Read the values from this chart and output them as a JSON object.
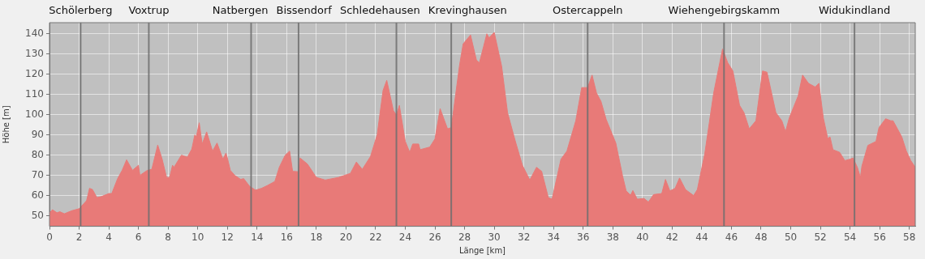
{
  "chart_data": {
    "type": "area",
    "xlabel": "Länge [km]",
    "ylabel": "Höhe [m]",
    "x": [
      0,
      0.2,
      0.5,
      0.7,
      1.0,
      1.5,
      2.0,
      2.5,
      2.7,
      2.9,
      3.2,
      3.5,
      4.0,
      4.2,
      4.6,
      4.9,
      5.2,
      5.6,
      6.0,
      6.1,
      6.6,
      6.9,
      7.3,
      7.6,
      7.9,
      8.1,
      8.3,
      8.4,
      8.9,
      9.3,
      9.6,
      9.8,
      9.9,
      10.1,
      10.3,
      10.6,
      11.0,
      11.3,
      11.7,
      11.9,
      12.0,
      12.2,
      12.5,
      12.9,
      13.1,
      13.5,
      13.9,
      14.3,
      14.7,
      15.2,
      15.5,
      15.9,
      16.2,
      16.4,
      16.8,
      16.9,
      17.4,
      18.0,
      18.6,
      19.5,
      20.3,
      20.7,
      21.1,
      21.65,
      22.1,
      22.5,
      22.75,
      23.2,
      23.4,
      23.6,
      24.0,
      24.3,
      24.5,
      24.9,
      25.0,
      25.65,
      26.0,
      26.35,
      26.85,
      27.1,
      27.65,
      27.9,
      28.4,
      28.8,
      29.0,
      29.5,
      29.65,
      30.0,
      30.5,
      30.9,
      31.4,
      31.9,
      32.4,
      32.85,
      33.2,
      33.65,
      33.9,
      34.5,
      34.9,
      35.5,
      35.9,
      36.3,
      36.6,
      36.9,
      37.2,
      37.55,
      38.2,
      38.65,
      38.9,
      39.2,
      39.35,
      39.65,
      40.1,
      40.4,
      40.75,
      41.3,
      41.55,
      41.85,
      42.2,
      42.5,
      42.9,
      43.45,
      43.7,
      44.2,
      44.8,
      45.4,
      45.75,
      46.1,
      46.55,
      46.85,
      47.2,
      47.65,
      48.1,
      48.4,
      49.0,
      49.4,
      49.65,
      49.9,
      50.5,
      50.8,
      51.2,
      51.65,
      51.9,
      52.2,
      52.5,
      52.65,
      52.85,
      53.3,
      53.65,
      54.0,
      54.2,
      54.5,
      54.7,
      54.8,
      55.2,
      55.75,
      55.95,
      56.4,
      56.75,
      56.9,
      57.2,
      57.5,
      57.8,
      58.1,
      58.4
    ],
    "series": [
      {
        "color": "#e87a78",
        "values": [
          51.4,
          53,
          51.5,
          52,
          51,
          52.5,
          53.5,
          57.5,
          63.6,
          63,
          59,
          59.5,
          61,
          61,
          68.5,
          72.5,
          77.7,
          72.5,
          75,
          70,
          72.5,
          73,
          85,
          78,
          69,
          69,
          75,
          74,
          80,
          79,
          83,
          90,
          89,
          96,
          85.5,
          91.5,
          82,
          86,
          78,
          81,
          78.6,
          72.5,
          70,
          68,
          68.4,
          64.6,
          62.7,
          63.6,
          65,
          67,
          74,
          80,
          82,
          72,
          71.8,
          78.6,
          75.6,
          69,
          67.7,
          69,
          71,
          76.6,
          73,
          79.3,
          90,
          112,
          117,
          102,
          99.8,
          104.6,
          86.8,
          81.4,
          85.5,
          85.5,
          82.7,
          84,
          88,
          103,
          93,
          93.6,
          124,
          135,
          139.4,
          127,
          125.7,
          140,
          138,
          140.7,
          124,
          101,
          87.5,
          75,
          67.7,
          74,
          72,
          59,
          58.2,
          78,
          82,
          97,
          113.4,
          113.4,
          119.6,
          110.7,
          106.6,
          97.7,
          86,
          70,
          62.3,
          60.2,
          62.5,
          58.2,
          58.6,
          56.8,
          60.5,
          61,
          68,
          62.3,
          63.6,
          68.7,
          63,
          60,
          63,
          80.7,
          110.7,
          132.5,
          125.7,
          121.6,
          104.6,
          101,
          93,
          97,
          121.6,
          121,
          101,
          97,
          91.6,
          98.4,
          109.3,
          119.6,
          115.5,
          113.7,
          115.5,
          98.4,
          88.2,
          89,
          82.7,
          81.4,
          77.3,
          78,
          78.6,
          73.9,
          69,
          74.6,
          84.8,
          86.8,
          93.6,
          98,
          97,
          97,
          93,
          88.9,
          82,
          77.3,
          74
        ]
      }
    ],
    "xlim": [
      0,
      58.4
    ],
    "ylim": [
      44.8,
      145.5
    ],
    "xticks": [
      0,
      2,
      4,
      6,
      8,
      10,
      12,
      14,
      16,
      18,
      20,
      22,
      24,
      26,
      28,
      30,
      32,
      34,
      36,
      38,
      40,
      42,
      44,
      46,
      48,
      50,
      52,
      54,
      56,
      58
    ],
    "yticks": [
      50,
      60,
      70,
      80,
      90,
      100,
      110,
      120,
      130,
      140
    ],
    "grid": true,
    "legend": false,
    "ref_lines": [
      {
        "axis": "x",
        "value": 2.1,
        "label": "Schölerberg",
        "color": "#6e6e6e"
      },
      {
        "axis": "x",
        "value": 6.7,
        "label": "Voxtrup",
        "color": "#6e6e6e"
      },
      {
        "axis": "x",
        "value": 13.6,
        "label": "Natbergen",
        "color": "#6e6e6e"
      },
      {
        "axis": "x",
        "value": 16.8,
        "label": "Bissendorf",
        "color": "#6e6e6e"
      },
      {
        "axis": "x",
        "value": 23.4,
        "label": "Schledehausen",
        "color": "#6e6e6e"
      },
      {
        "axis": "x",
        "value": 27.1,
        "label": "Krevinghausen",
        "color": "#6e6e6e"
      },
      {
        "axis": "x",
        "value": 36.3,
        "label": "Ostercappeln",
        "color": "#6e6e6e"
      },
      {
        "axis": "x",
        "value": 45.5,
        "label": "Wiehengebirgskamm",
        "color": "#6e6e6e"
      },
      {
        "axis": "x",
        "value": 54.3,
        "label": "Widukindland",
        "color": "#6e6e6e"
      }
    ]
  }
}
